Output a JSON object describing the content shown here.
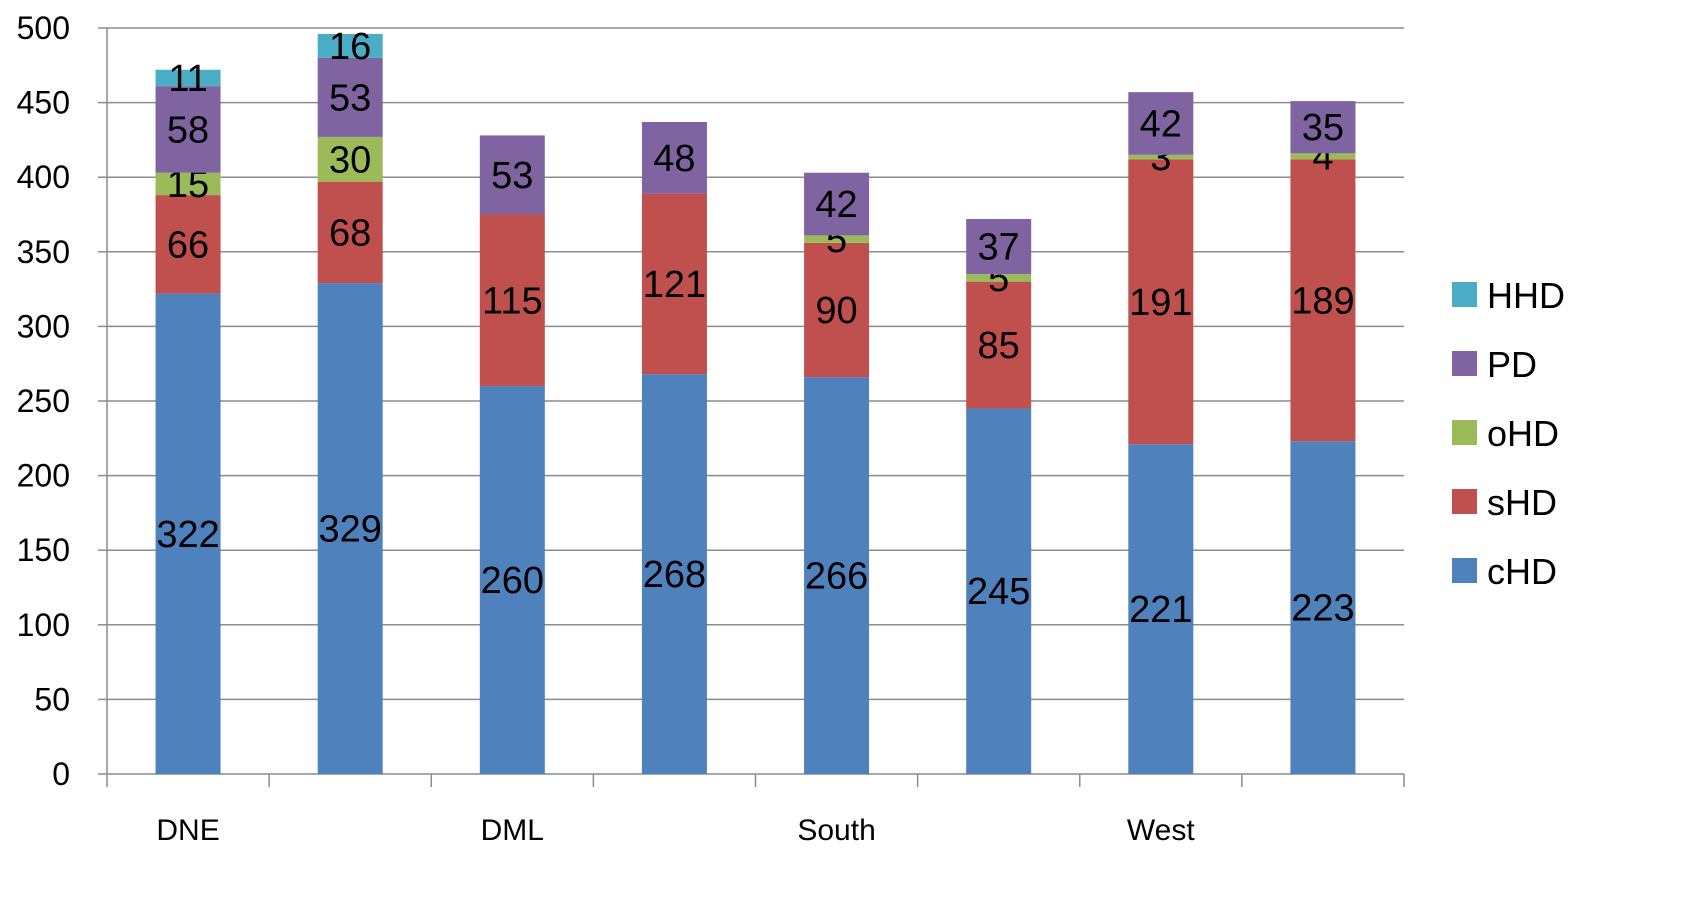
{
  "chart_data": {
    "type": "bar",
    "stacked": true,
    "title": "",
    "xlabel": "",
    "ylabel": "",
    "ylim": [
      0,
      500
    ],
    "y_ticks": [
      0,
      50,
      100,
      150,
      200,
      250,
      300,
      350,
      400,
      450,
      500
    ],
    "grid": "horizontal",
    "legend_position": "right",
    "group_labels": [
      "DNE",
      "DML",
      "South",
      "West"
    ],
    "bars_per_group": 2,
    "series": [
      {
        "name": "cHD",
        "color": "#4F81BD",
        "values": [
          322,
          329,
          260,
          268,
          266,
          245,
          221,
          223
        ]
      },
      {
        "name": "sHD",
        "color": "#C0504D",
        "values": [
          66,
          68,
          115,
          121,
          90,
          85,
          191,
          189
        ]
      },
      {
        "name": "oHD",
        "color": "#9BBB59",
        "values": [
          15,
          30,
          0,
          0,
          5,
          5,
          3,
          4
        ]
      },
      {
        "name": "PD",
        "color": "#8064A2",
        "values": [
          58,
          53,
          53,
          48,
          42,
          37,
          42,
          35
        ]
      },
      {
        "name": "HHD",
        "color": "#4BACC6",
        "values": [
          11,
          16,
          0,
          0,
          0,
          0,
          0,
          0
        ]
      }
    ],
    "legend_order": [
      "HHD",
      "PD",
      "oHD",
      "sHD",
      "cHD"
    ]
  }
}
